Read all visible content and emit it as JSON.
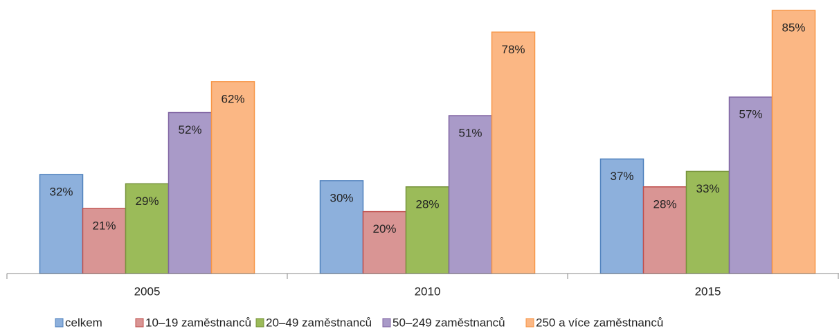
{
  "chart_data": {
    "type": "bar",
    "categories": [
      "2005",
      "2010",
      "2015"
    ],
    "series": [
      {
        "name": "celkem",
        "color": "#8db0dc",
        "border": "#4f81bd",
        "values": [
          32,
          30,
          37
        ],
        "value_labels": [
          "32%",
          "30%",
          "37%"
        ]
      },
      {
        "name": "10–19 zaměstnanců",
        "color": "#d99594",
        "border": "#c0504d",
        "values": [
          21,
          20,
          28
        ],
        "value_labels": [
          "21%",
          "20%",
          "28%"
        ]
      },
      {
        "name": "20–49 zaměstnanců",
        "color": "#9bbb59",
        "border": "#77933c",
        "values": [
          29,
          28,
          33
        ],
        "value_labels": [
          "29%",
          "28%",
          "33%"
        ]
      },
      {
        "name": "50–249 zaměstnanců",
        "color": "#a99ac8",
        "border": "#8064a2",
        "values": [
          52,
          51,
          57
        ],
        "value_labels": [
          "52%",
          "51%",
          "57%"
        ]
      },
      {
        "name": "250 a více zaměstnanců",
        "color": "#fbb784",
        "border": "#f79646",
        "values": [
          62,
          78,
          85
        ],
        "value_labels": [
          "62%",
          "78%",
          "85%"
        ]
      }
    ],
    "legend": "bottom"
  }
}
